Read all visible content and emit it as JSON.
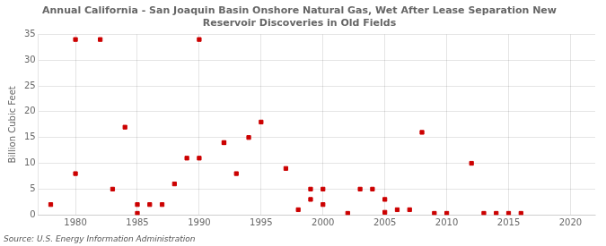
{
  "chart_data": {
    "type": "scatter",
    "title": "Annual California - San Joaquin Basin Onshore Natural Gas, Wet After Lease Separation New\nReservoir Discoveries in Old Fields",
    "ylabel": "Billion Cubic Feet",
    "annotation": "Source: U.S. Energy Information Administration",
    "x": [
      1978,
      1980,
      1980,
      1982,
      1983,
      1984,
      1985,
      1985,
      1986,
      1987,
      1988,
      1989,
      1990,
      1990,
      1992,
      1992,
      1993,
      1994,
      1995,
      1997,
      1998,
      1999,
      1999,
      2000,
      2000,
      2002,
      2003,
      2004,
      2005,
      2005,
      2006,
      2007,
      2008,
      2009,
      2010,
      2012,
      2013,
      2014,
      2015,
      2016
    ],
    "values": [
      2,
      8,
      34,
      34,
      5,
      17,
      2,
      0.3,
      2,
      2,
      6,
      11,
      34,
      11,
      14,
      14,
      8,
      15,
      18,
      9,
      1,
      3,
      5,
      5,
      2,
      0.3,
      5,
      5,
      3,
      0.5,
      1,
      1,
      16,
      0.3,
      0.3,
      10,
      0.3,
      0.3,
      0.3,
      0.3
    ],
    "color": "#cc0000",
    "marker": "square",
    "xlim": [
      1977,
      2022
    ],
    "xticks": [
      1980,
      1985,
      1990,
      1995,
      2000,
      2005,
      2010,
      2015,
      2020
    ],
    "ylim": [
      0,
      35
    ],
    "yticks": [
      0,
      5,
      10,
      15,
      20,
      25,
      30,
      35
    ],
    "grid": true
  }
}
